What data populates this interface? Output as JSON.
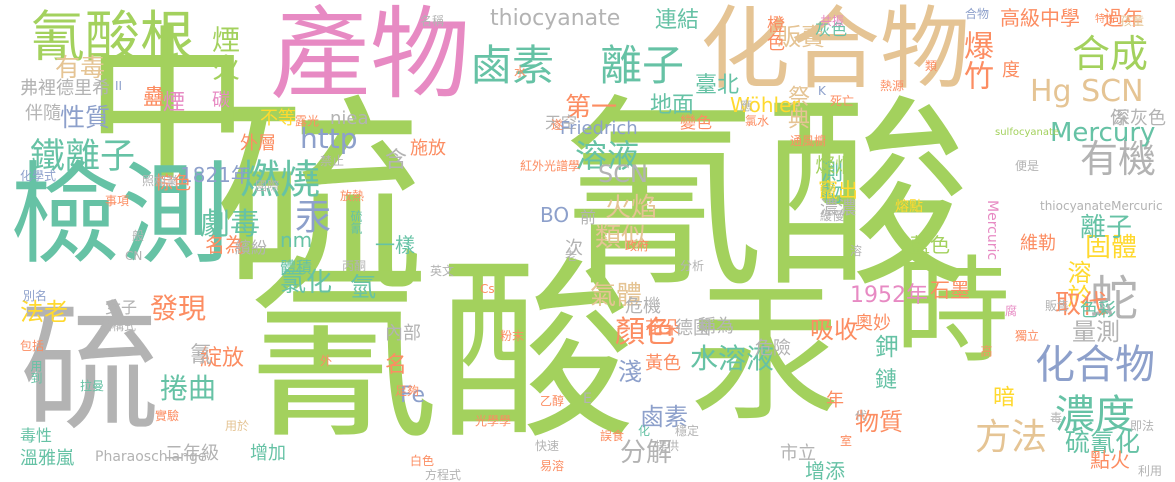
{
  "palette": {
    "green": "#a3d15d",
    "teal": "#66c2a5",
    "pink": "#e78ac3",
    "orange": "#fc8d62",
    "blue": "#8da0cb",
    "yellow": "#ffd92f",
    "tan": "#e5c494",
    "gray": "#b3b3b3"
  },
  "words": [
    {
      "text": "氰酸",
      "color": "green"
    },
    {
      "text": "硫",
      "color": "green"
    },
    {
      "text": "氰酸",
      "color": "green"
    },
    {
      "text": "中",
      "color": "green"
    },
    {
      "text": "硫",
      "color": "gray"
    },
    {
      "text": "檢測",
      "color": "teal"
    },
    {
      "text": "產物",
      "color": "pink"
    },
    {
      "text": "化合物",
      "color": "tan"
    },
    {
      "text": "汞",
      "color": "green"
    },
    {
      "text": "時",
      "color": "green"
    },
    {
      "text": "氰酸根",
      "color": "green"
    },
    {
      "text": "鹵素",
      "color": "teal"
    },
    {
      "text": "離子",
      "color": "teal"
    },
    {
      "text": "thiocyanate",
      "color": "gray"
    },
    {
      "text": "連結",
      "color": "teal"
    },
    {
      "text": "合成",
      "color": "green"
    },
    {
      "text": "Hg SCN",
      "color": "tan"
    },
    {
      "text": "有機",
      "color": "gray"
    },
    {
      "text": "鐵離子",
      "color": "teal"
    },
    {
      "text": "燃燒",
      "color": "teal"
    },
    {
      "text": "汞",
      "color": "blue"
    },
    {
      "text": "化合物",
      "color": "blue"
    },
    {
      "text": "濃度",
      "color": "teal"
    },
    {
      "text": "方法",
      "color": "tan"
    },
    {
      "text": "蛇",
      "color": "gray"
    },
    {
      "text": "溶液",
      "color": "teal"
    },
    {
      "text": "http",
      "color": "blue"
    },
    {
      "text": "劇毒",
      "color": "teal"
    },
    {
      "text": "煙火",
      "color": "green"
    },
    {
      "text": "爆竹",
      "color": "orange"
    },
    {
      "text": "Mercury",
      "color": "teal"
    },
    {
      "text": "有毒",
      "color": "tan"
    },
    {
      "text": "性質",
      "color": "blue"
    },
    {
      "text": "氯化",
      "color": "teal"
    },
    {
      "text": "氫",
      "color": "teal"
    },
    {
      "text": "發現",
      "color": "orange"
    },
    {
      "text": "顏色",
      "color": "orange"
    },
    {
      "text": "氣體",
      "color": "tan"
    },
    {
      "text": "火焰",
      "color": "tan"
    },
    {
      "text": "類似",
      "color": "tan"
    },
    {
      "text": "SCN",
      "color": "gray"
    },
    {
      "text": "吸收",
      "color": "orange"
    },
    {
      "text": "固體",
      "color": "yellow"
    },
    {
      "text": "離子",
      "color": "teal"
    },
    {
      "text": "溶於",
      "color": "yellow"
    },
    {
      "text": "取代",
      "color": "orange"
    },
    {
      "text": "硫氰化",
      "color": "teal"
    },
    {
      "text": "1952年",
      "color": "pink"
    },
    {
      "text": "量測",
      "color": "gray"
    },
    {
      "text": "分解",
      "color": "gray"
    },
    {
      "text": "水溶液",
      "color": "teal"
    },
    {
      "text": "鹵素",
      "color": "blue"
    },
    {
      "text": "物質",
      "color": "orange"
    },
    {
      "text": "捲曲",
      "color": "teal"
    },
    {
      "text": "淺",
      "color": "blue"
    },
    {
      "text": "鉀",
      "color": "teal"
    },
    {
      "text": "鏈",
      "color": "teal"
    },
    {
      "text": "測物",
      "color": "teal"
    },
    {
      "text": "第一",
      "color": "orange"
    },
    {
      "text": "地面",
      "color": "teal"
    },
    {
      "text": "臺北",
      "color": "teal"
    },
    {
      "text": "販賣",
      "color": "tan"
    },
    {
      "text": "祭典",
      "color": "tan"
    },
    {
      "text": "高級中學",
      "color": "orange"
    },
    {
      "text": "過年",
      "color": "orange"
    },
    {
      "text": "橙色",
      "color": "orange"
    },
    {
      "text": "係",
      "color": "gray"
    },
    {
      "text": "度",
      "color": "orange"
    },
    {
      "text": "深灰色",
      "color": "gray"
    },
    {
      "text": "弗裡德里希",
      "color": "gray"
    },
    {
      "text": "伴隨",
      "color": "gray"
    },
    {
      "text": "碳",
      "color": "pink"
    },
    {
      "text": "不等",
      "color": "yellow"
    },
    {
      "text": "niea",
      "color": "gray"
    },
    {
      "text": "Wöhler",
      "color": "yellow"
    },
    {
      "text": "天空",
      "color": "gray"
    },
    {
      "text": "Friedrich",
      "color": "blue"
    },
    {
      "text": "燦爛",
      "color": "green"
    },
    {
      "text": "竄出",
      "color": "yellow"
    },
    {
      "text": "1821年",
      "color": "blue"
    },
    {
      "text": "名為",
      "color": "orange"
    },
    {
      "text": "nm",
      "color": "teal"
    },
    {
      "text": "一樣",
      "color": "teal"
    },
    {
      "text": "BO",
      "color": "blue"
    },
    {
      "text": "前",
      "color": "gray"
    },
    {
      "text": "濃濃",
      "color": "gray"
    },
    {
      "text": "繽紛",
      "color": "gray"
    },
    {
      "text": "體積",
      "color": "teal"
    },
    {
      "text": "次",
      "color": "gray"
    },
    {
      "text": "施放",
      "color": "orange"
    },
    {
      "text": "法老",
      "color": "yellow"
    },
    {
      "text": "危機",
      "color": "gray"
    },
    {
      "text": "花朵",
      "color": "orange"
    },
    {
      "text": "藍色",
      "color": "green"
    },
    {
      "text": "維勒",
      "color": "orange"
    },
    {
      "text": "石墨",
      "color": "orange"
    },
    {
      "text": "色彩",
      "color": "teal"
    },
    {
      "text": "稱為",
      "color": "gray"
    },
    {
      "text": "德國",
      "color": "gray"
    },
    {
      "text": "奧妙",
      "color": "orange"
    },
    {
      "text": "危險",
      "color": "gray"
    },
    {
      "text": "黃色",
      "color": "orange"
    },
    {
      "text": "名",
      "color": "orange"
    },
    {
      "text": "內部",
      "color": "gray"
    },
    {
      "text": "Fe",
      "color": "blue"
    },
    {
      "text": "綻放",
      "color": "orange"
    },
    {
      "text": "暗",
      "color": "yellow"
    },
    {
      "text": "增添",
      "color": "teal"
    },
    {
      "text": "點火",
      "color": "orange"
    },
    {
      "text": "年",
      "color": "orange"
    },
    {
      "text": "二年級",
      "color": "gray"
    },
    {
      "text": "增加",
      "color": "teal"
    },
    {
      "text": "市立",
      "color": "gray"
    },
    {
      "text": "溫雅嵐",
      "color": "teal"
    },
    {
      "text": "毒性",
      "color": "teal"
    },
    {
      "text": "Pharaoschlange",
      "color": "gray"
    },
    {
      "text": "女子",
      "color": "gray"
    },
    {
      "text": "灰色",
      "color": "teal"
    },
    {
      "text": "外層",
      "color": "orange"
    },
    {
      "text": "棕色",
      "color": "orange"
    },
    {
      "text": "蠱",
      "color": "orange"
    },
    {
      "text": "煙",
      "color": "pink"
    },
    {
      "text": "含",
      "color": "gray"
    },
    {
      "text": "氰",
      "color": "gray"
    },
    {
      "text": "名稱",
      "color": "gray"
    },
    {
      "text": "共振",
      "color": "pink"
    },
    {
      "text": "孩童",
      "color": "tan"
    },
    {
      "text": "特性",
      "color": "orange"
    },
    {
      "text": "熔點",
      "color": "yellow"
    },
    {
      "text": "熱源",
      "color": "orange"
    },
    {
      "text": "sulfocyanate",
      "color": "green"
    },
    {
      "text": "thiocyanateMercuric",
      "color": "gray"
    },
    {
      "text": "Mercuric",
      "color": "pink"
    },
    {
      "text": "通風櫥",
      "color": "orange"
    },
    {
      "text": "毒",
      "color": "gray"
    },
    {
      "text": "即法",
      "color": "gray"
    },
    {
      "text": "利用",
      "color": "gray"
    },
    {
      "text": "用於",
      "color": "tan"
    },
    {
      "text": "紅外光譜學",
      "color": "orange"
    },
    {
      "text": "放熱",
      "color": "orange"
    },
    {
      "text": "硫氰",
      "color": "teal"
    },
    {
      "text": "政府",
      "color": "orange"
    },
    {
      "text": "方程式",
      "color": "gray"
    },
    {
      "text": "便是",
      "color": "gray"
    },
    {
      "text": "死亡",
      "color": "orange"
    },
    {
      "text": "販售",
      "color": "gray"
    },
    {
      "text": "般",
      "color": "gray"
    },
    {
      "text": "CN",
      "color": "gray"
    },
    {
      "text": "別名",
      "color": "blue"
    },
    {
      "text": "包括",
      "color": "orange"
    },
    {
      "text": "用到",
      "color": "teal"
    },
    {
      "text": "拉曼",
      "color": "teal"
    },
    {
      "text": "實驗",
      "color": "orange"
    },
    {
      "text": "事項",
      "color": "orange"
    },
    {
      "text": "化學式",
      "color": "blue"
    },
    {
      "text": "照相業",
      "color": "gray"
    },
    {
      "text": "禁止",
      "color": "gray"
    },
    {
      "text": "變色",
      "color": "orange"
    },
    {
      "text": "E",
      "color": "gray"
    },
    {
      "text": "II",
      "color": "blue"
    },
    {
      "text": "K",
      "color": "blue"
    },
    {
      "text": "Cs",
      "color": "orange"
    },
    {
      "text": "乙醇",
      "color": "orange"
    },
    {
      "text": "溶",
      "color": "gray"
    },
    {
      "text": "分析",
      "color": "gray"
    },
    {
      "text": "高",
      "color": "orange"
    },
    {
      "text": "代",
      "color": "gray"
    },
    {
      "text": "腐",
      "color": "pink"
    },
    {
      "text": "獨立",
      "color": "orange"
    },
    {
      "text": "室",
      "color": "orange"
    },
    {
      "text": "老",
      "color": "gray"
    },
    {
      "text": "光學學",
      "color": "orange"
    },
    {
      "text": "快速",
      "color": "gray"
    },
    {
      "text": "誤食",
      "color": "orange"
    },
    {
      "text": "易溶",
      "color": "orange"
    },
    {
      "text": "白色",
      "color": "orange"
    },
    {
      "text": "化",
      "color": "teal"
    },
    {
      "text": "丙酮",
      "color": "gray"
    },
    {
      "text": "結構式",
      "color": "gray"
    },
    {
      "text": "英文",
      "color": "gray"
    },
    {
      "text": "氯水",
      "color": "orange"
    },
    {
      "text": "粉末",
      "color": "orange"
    },
    {
      "text": "足夠",
      "color": "orange"
    },
    {
      "text": "緩慢",
      "color": "gray"
    },
    {
      "text": "類",
      "color": "orange"
    },
    {
      "text": "應",
      "color": "gray"
    },
    {
      "text": "國際",
      "color": "gray"
    },
    {
      "text": "提供",
      "color": "gray"
    },
    {
      "text": "穩定",
      "color": "gray"
    },
    {
      "text": "露光",
      "color": "orange"
    },
    {
      "text": "合物",
      "color": "blue"
    },
    {
      "text": "外",
      "color": "orange"
    },
    {
      "text": "水",
      "color": "orange"
    },
    {
      "text": "遂",
      "color": "orange"
    }
  ]
}
